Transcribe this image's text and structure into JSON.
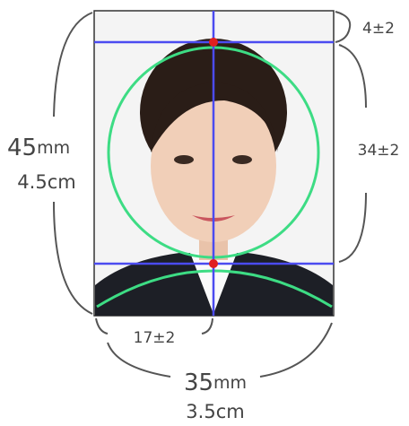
{
  "labels": {
    "top_margin": "4±2",
    "face_height": "34±2",
    "height_value": "45",
    "height_unit": "mm",
    "height_cm": "4.5cm",
    "chin_margin": "17±2",
    "width_value": "35",
    "width_unit": "mm",
    "width_cm": "3.5cm"
  }
}
